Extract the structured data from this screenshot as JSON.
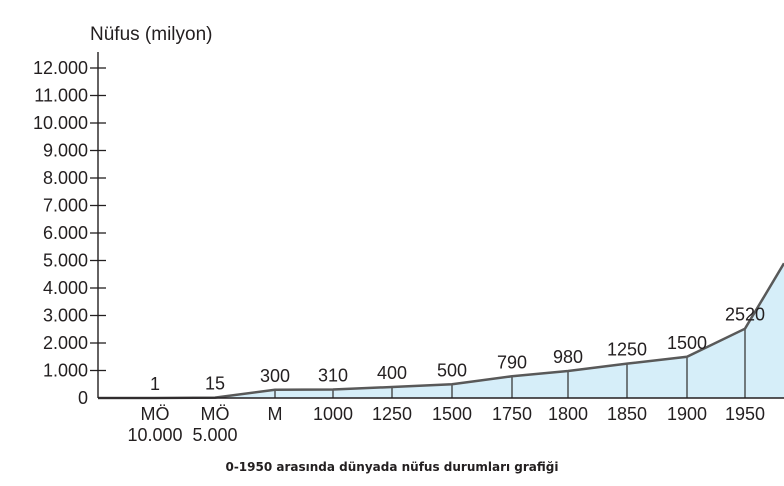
{
  "chart_data": {
    "type": "area",
    "title": "",
    "ylabel": "Nüfus (milyon)",
    "xlabel": "",
    "ylim": [
      0,
      12000
    ],
    "yticks": [
      "0",
      "1.000",
      "2.000",
      "3.000",
      "4.000",
      "5.000",
      "6.000",
      "7.000",
      "8.000",
      "9.000",
      "10.000",
      "11.000",
      "12.000"
    ],
    "categories": [
      [
        "MÖ",
        "10.000"
      ],
      [
        "MÖ",
        "5.000"
      ],
      [
        "M"
      ],
      [
        "1000"
      ],
      [
        "1250"
      ],
      [
        "1500"
      ],
      [
        "1750"
      ],
      [
        "1800"
      ],
      [
        "1850"
      ],
      [
        "1900"
      ],
      [
        "1950"
      ],
      [
        ""
      ]
    ],
    "values": [
      1,
      15,
      300,
      310,
      400,
      500,
      790,
      980,
      1250,
      1500,
      2520,
      4900
    ],
    "data_labels": [
      "1",
      "15",
      "300",
      "310",
      "400",
      "500",
      "790",
      "980",
      "1250",
      "1500",
      "2520",
      ""
    ],
    "fill_color": "#d6eef9",
    "line_color": "#595959",
    "grid": false
  },
  "caption": "0-1950 arasında dünyada nüfus durumları grafiği"
}
